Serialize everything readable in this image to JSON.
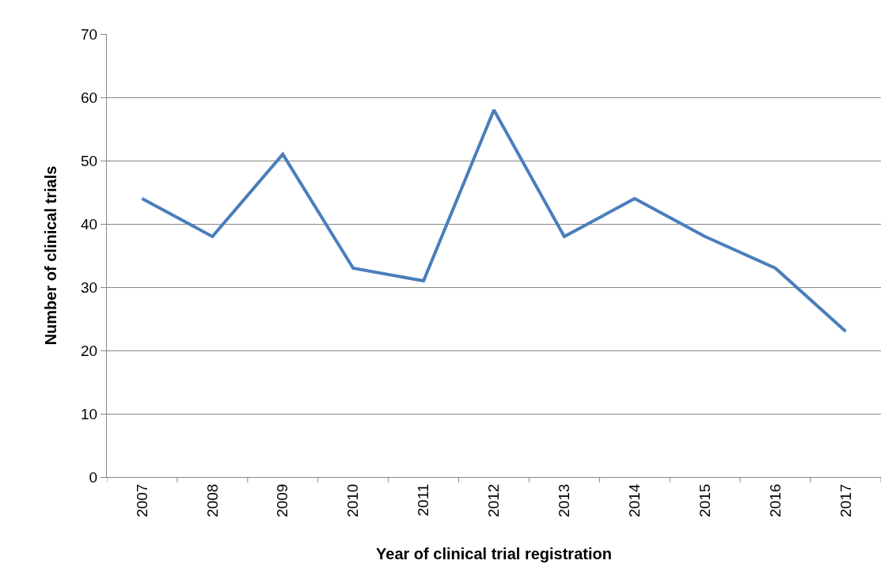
{
  "chart_data": {
    "type": "line",
    "xlabel": "Year of clinical trial registration",
    "ylabel": "Number of clinical trials",
    "categories": [
      "2007",
      "2008",
      "2009",
      "2010",
      "2011",
      "2012",
      "2013",
      "2014",
      "2015",
      "2016",
      "2017"
    ],
    "series": [
      {
        "color": "#4a7ebb",
        "values": [
          44,
          38,
          51,
          33,
          31,
          58,
          38,
          44,
          38,
          33,
          23
        ]
      }
    ],
    "ylim": [
      0,
      70
    ],
    "yticks": [
      0,
      10,
      20,
      30,
      40,
      50,
      60,
      70
    ],
    "grid": "y",
    "marker": "none",
    "line_style": "solid"
  }
}
